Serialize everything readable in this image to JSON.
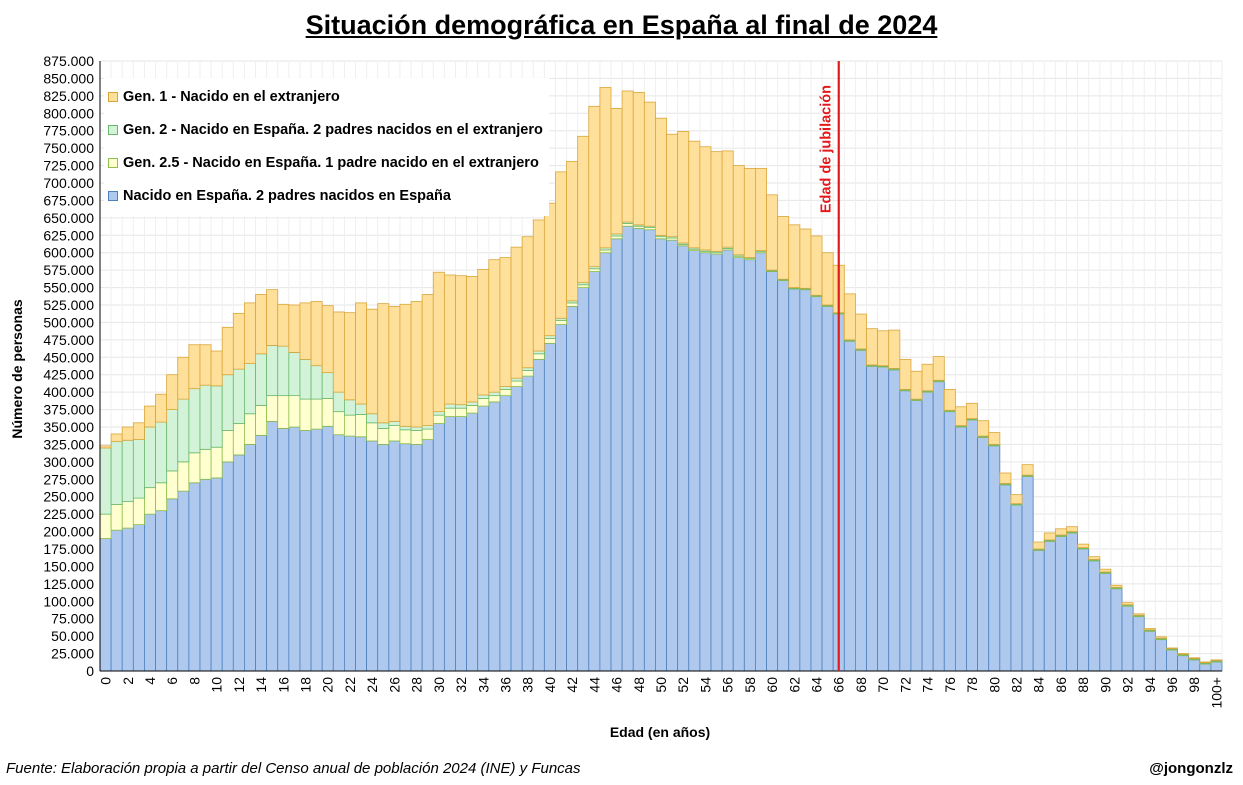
{
  "chart_data": {
    "type": "bar",
    "stacked": true,
    "title": "Situación demográfica en España al final de 2024",
    "xlabel": "Edad (en años)",
    "ylabel": "Número de personas",
    "ylim": [
      0,
      875000
    ],
    "ytick_step": 25000,
    "grid": true,
    "legend_position": "top-left",
    "categories": [
      "0",
      "1",
      "2",
      "3",
      "4",
      "5",
      "6",
      "7",
      "8",
      "9",
      "10",
      "11",
      "12",
      "13",
      "14",
      "15",
      "16",
      "17",
      "18",
      "19",
      "20",
      "21",
      "22",
      "23",
      "24",
      "25",
      "26",
      "27",
      "28",
      "29",
      "30",
      "31",
      "32",
      "33",
      "34",
      "35",
      "36",
      "37",
      "38",
      "39",
      "40",
      "41",
      "42",
      "43",
      "44",
      "45",
      "46",
      "47",
      "48",
      "49",
      "50",
      "51",
      "52",
      "53",
      "54",
      "55",
      "56",
      "57",
      "58",
      "59",
      "60",
      "61",
      "62",
      "63",
      "64",
      "65",
      "66",
      "67",
      "68",
      "69",
      "70",
      "71",
      "72",
      "73",
      "74",
      "75",
      "76",
      "77",
      "78",
      "79",
      "80",
      "81",
      "82",
      "83",
      "84",
      "85",
      "86",
      "87",
      "88",
      "89",
      "90",
      "91",
      "92",
      "93",
      "94",
      "95",
      "96",
      "97",
      "98",
      "99",
      "100+"
    ],
    "x_tick_labels": [
      "0",
      "2",
      "4",
      "6",
      "8",
      "10",
      "12",
      "14",
      "16",
      "18",
      "20",
      "22",
      "24",
      "26",
      "28",
      "30",
      "32",
      "34",
      "36",
      "38",
      "40",
      "42",
      "44",
      "46",
      "48",
      "50",
      "52",
      "54",
      "56",
      "58",
      "60",
      "62",
      "64",
      "66",
      "68",
      "70",
      "72",
      "74",
      "76",
      "78",
      "80",
      "82",
      "84",
      "86",
      "88",
      "90",
      "92",
      "94",
      "96",
      "98",
      "100+"
    ],
    "series": [
      {
        "name": "Nacido en España. 2 padres nacidos en España",
        "color": "#aec8ee",
        "edge": "#4f81bd",
        "values": [
          190000,
          202000,
          205000,
          210000,
          225000,
          230000,
          247000,
          258000,
          270000,
          275000,
          277000,
          300000,
          310000,
          325000,
          338000,
          358000,
          348000,
          350000,
          345000,
          347000,
          351000,
          339000,
          337000,
          336000,
          330000,
          325000,
          330000,
          326000,
          325000,
          332000,
          355000,
          365000,
          365000,
          370000,
          380000,
          386000,
          395000,
          408000,
          423000,
          447000,
          470000,
          497000,
          523000,
          550000,
          573000,
          600000,
          620000,
          638000,
          635000,
          633000,
          620000,
          618000,
          610000,
          603000,
          600000,
          598000,
          604000,
          593000,
          590000,
          600000,
          573000,
          560000,
          548000,
          547000,
          537000,
          523000,
          512000,
          473000,
          460000,
          437000,
          436000,
          432000,
          402000,
          388000,
          400000,
          415000,
          372000,
          350000,
          360000,
          335000,
          323000,
          267000,
          238000,
          279000,
          173000,
          186000,
          193000,
          198000,
          175000,
          158000,
          140000,
          118000,
          93000,
          78000,
          57000,
          45000,
          30000,
          22000,
          16000,
          10000,
          13000
        ]
      },
      {
        "name": "Gen. 2.5 - Nacido en España. 1 padre nacido en el extranjero",
        "color": "#ffffd0",
        "edge": "#8fbf4d",
        "values": [
          35000,
          37000,
          38000,
          38000,
          38000,
          40000,
          40000,
          42000,
          43000,
          43000,
          44000,
          45000,
          45000,
          44000,
          43000,
          37000,
          47000,
          45000,
          45000,
          43000,
          40000,
          33000,
          30000,
          32000,
          26000,
          23000,
          22000,
          20000,
          20000,
          15000,
          12000,
          12000,
          12000,
          11000,
          11000,
          9000,
          9000,
          8000,
          8000,
          8000,
          7000,
          6000,
          5000,
          4000,
          4000,
          4000,
          4000,
          4000,
          3000,
          3000,
          3000,
          3000,
          2000,
          2000,
          2000,
          2000,
          2000,
          2000,
          2000,
          2000,
          1000,
          1000,
          1000,
          1000,
          1000,
          1000,
          1000,
          1000,
          1000,
          1000,
          1000,
          1000,
          1000,
          1000,
          1000,
          1000,
          1000,
          1000,
          1000,
          1000,
          1000,
          1000,
          1000,
          1000,
          1000,
          1000,
          1000,
          1000,
          1000,
          1000,
          1000,
          1000,
          1000,
          1000,
          1000,
          1000,
          1000,
          1000,
          1000,
          1000,
          1000
        ]
      },
      {
        "name": "Gen. 2 - Nacido en España. 2 padres nacidos en el extranjero",
        "color": "#d2f3d8",
        "edge": "#6ab870",
        "values": [
          95000,
          90000,
          88000,
          84000,
          87000,
          87000,
          88000,
          90000,
          92000,
          92000,
          88000,
          80000,
          78000,
          72000,
          74000,
          72000,
          71000,
          62000,
          57000,
          48000,
          37000,
          28000,
          22000,
          15000,
          13000,
          8000,
          6000,
          5000,
          5000,
          5000,
          5000,
          6000,
          5000,
          5000,
          5000,
          5000,
          4000,
          4000,
          4000,
          4000,
          4000,
          3000,
          3000,
          3000,
          3000,
          3000,
          3000,
          2000,
          2000,
          2000,
          2000,
          2000,
          2000,
          2000,
          2000,
          2000,
          2000,
          2000,
          1000,
          1000,
          1000,
          1000,
          1000,
          1000,
          1000,
          1000,
          1000,
          1000,
          1000,
          1000,
          1000,
          1000,
          1000,
          1000,
          1000,
          1000,
          1000,
          1000,
          1000,
          1000,
          1000,
          1000,
          1000,
          1000,
          1000,
          1000,
          1000,
          1000,
          1000,
          1000,
          1000,
          1000,
          1000,
          1000,
          1000,
          1000,
          1000,
          1000,
          1000,
          1000,
          1000
        ]
      },
      {
        "name": "Gen. 1 - Nacido en el extranjero",
        "color": "#ffe09a",
        "edge": "#d9a63b",
        "values": [
          3000,
          11000,
          19000,
          24000,
          30000,
          40000,
          50000,
          60000,
          63000,
          58000,
          50000,
          68000,
          80000,
          87000,
          85000,
          80000,
          60000,
          68000,
          81000,
          92000,
          96000,
          115000,
          125000,
          145000,
          150000,
          171000,
          165000,
          175000,
          180000,
          188000,
          200000,
          185000,
          185000,
          180000,
          180000,
          190000,
          185000,
          188000,
          188000,
          188000,
          190000,
          210000,
          200000,
          210000,
          230000,
          230000,
          180000,
          188000,
          190000,
          178000,
          168000,
          147000,
          160000,
          153000,
          148000,
          143000,
          138000,
          128000,
          128000,
          118000,
          108000,
          90000,
          90000,
          85000,
          85000,
          75000,
          68000,
          66000,
          50000,
          52000,
          50000,
          55000,
          43000,
          40000,
          38000,
          34000,
          30000,
          27000,
          22000,
          22000,
          17000,
          15000,
          13000,
          15000,
          10000,
          10000,
          9000,
          7000,
          5000,
          4000,
          4000,
          3000,
          3000,
          2000,
          2000,
          2000,
          1000,
          1000,
          1000,
          1000,
          1000
        ]
      }
    ],
    "annotations": [
      {
        "text": "Edad de jubilación",
        "x": 66.5,
        "color": "#e31a1c"
      }
    ]
  },
  "footer": {
    "source": "Fuente: Elaboración propia a partir del Censo anual de población 2024 (INE) y Funcas",
    "handle": "@jongonzlz"
  }
}
